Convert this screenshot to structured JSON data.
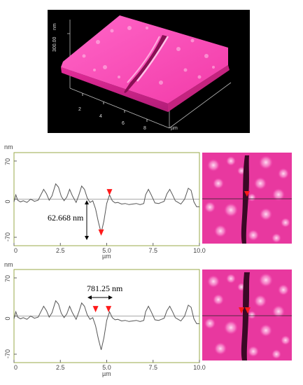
{
  "chart_data": [
    {
      "type": "surface3d",
      "z_axis_unit": "nm",
      "z_tick": "300.00",
      "x_ticks": [
        "2",
        "4",
        "6",
        "8"
      ],
      "x_unit": "µm",
      "colors": {
        "background": "#000000",
        "surface": "#ff5fc4"
      }
    },
    {
      "type": "line",
      "y_unit": "nm",
      "x_unit": "µm",
      "x_ticks": [
        "0",
        "2.5",
        "5.0",
        "7.5",
        "10.0"
      ],
      "y_ticks": [
        "70",
        "0",
        "-70"
      ],
      "ylim": [
        -70,
        70
      ],
      "xlim": [
        0,
        10
      ],
      "annotation": "62.668 nm",
      "markers": [
        {
          "x": 4.7,
          "y": -62
        },
        {
          "x": 5.15,
          "y": 12
        }
      ],
      "x": [
        0,
        0.1,
        0.2,
        0.35,
        0.5,
        0.7,
        0.9,
        1.1,
        1.3,
        1.45,
        1.6,
        1.75,
        1.9,
        2.05,
        2.25,
        2.4,
        2.55,
        2.7,
        2.85,
        3.0,
        3.15,
        3.35,
        3.5,
        3.65,
        3.8,
        3.95,
        4.1,
        4.25,
        4.4,
        4.55,
        4.7,
        4.85,
        5.0,
        5.15,
        5.3,
        5.45,
        5.6,
        5.8,
        6.0,
        6.2,
        6.4,
        6.6,
        6.8,
        7.0,
        7.1,
        7.25,
        7.4,
        7.6,
        7.8,
        7.95,
        8.1,
        8.25,
        8.4,
        8.55,
        8.7,
        8.85,
        9.0,
        9.2,
        9.4,
        9.55,
        9.7,
        9.85,
        10.0
      ],
      "y": [
        -5,
        8,
        -2,
        -5,
        -3,
        -6,
        0,
        -4,
        -2,
        8,
        18,
        10,
        -2,
        6,
        28,
        22,
        5,
        -3,
        4,
        18,
        6,
        -6,
        8,
        24,
        18,
        2,
        -6,
        -3,
        -18,
        -42,
        -62,
        -40,
        -8,
        8,
        -3,
        -7,
        -6,
        -9,
        -8,
        -10,
        -9,
        -8,
        -10,
        -8,
        8,
        18,
        8,
        -7,
        -8,
        -6,
        -4,
        10,
        18,
        8,
        -3,
        -6,
        -9,
        0,
        20,
        16,
        -5,
        -14,
        -14
      ]
    },
    {
      "type": "line",
      "y_unit": "nm",
      "x_unit": "µm",
      "x_ticks": [
        "0",
        "2.5",
        "5.0",
        "7.5",
        "10.0"
      ],
      "y_ticks": [
        "70",
        "0",
        "-70"
      ],
      "ylim": [
        -70,
        70
      ],
      "xlim": [
        0,
        10
      ],
      "annotation": "781.25 nm",
      "markers": [
        {
          "x": 4.4,
          "y": 12
        },
        {
          "x": 5.1,
          "y": 12
        }
      ],
      "x": [
        0,
        0.1,
        0.2,
        0.35,
        0.5,
        0.7,
        0.9,
        1.1,
        1.3,
        1.45,
        1.6,
        1.75,
        1.9,
        2.05,
        2.25,
        2.4,
        2.55,
        2.7,
        2.85,
        3.0,
        3.15,
        3.35,
        3.5,
        3.65,
        3.8,
        3.95,
        4.1,
        4.25,
        4.4,
        4.55,
        4.7,
        4.85,
        5.0,
        5.15,
        5.3,
        5.45,
        5.6,
        5.8,
        6.0,
        6.2,
        6.4,
        6.6,
        6.8,
        7.0,
        7.1,
        7.25,
        7.4,
        7.6,
        7.8,
        7.95,
        8.1,
        8.25,
        8.4,
        8.55,
        8.7,
        8.85,
        9.0,
        9.2,
        9.4,
        9.55,
        9.7,
        9.85,
        10.0
      ],
      "y": [
        -5,
        8,
        -2,
        -5,
        -3,
        -6,
        0,
        -4,
        -2,
        8,
        18,
        10,
        -2,
        6,
        28,
        22,
        5,
        -3,
        4,
        18,
        6,
        -6,
        8,
        24,
        18,
        2,
        -6,
        -3,
        -18,
        -42,
        -62,
        -40,
        -8,
        8,
        -3,
        -7,
        -6,
        -9,
        -8,
        -10,
        -9,
        -8,
        -10,
        -8,
        8,
        18,
        8,
        -7,
        -8,
        -6,
        -4,
        10,
        18,
        8,
        -3,
        -6,
        -9,
        0,
        20,
        16,
        -5,
        -14,
        -14
      ]
    }
  ]
}
